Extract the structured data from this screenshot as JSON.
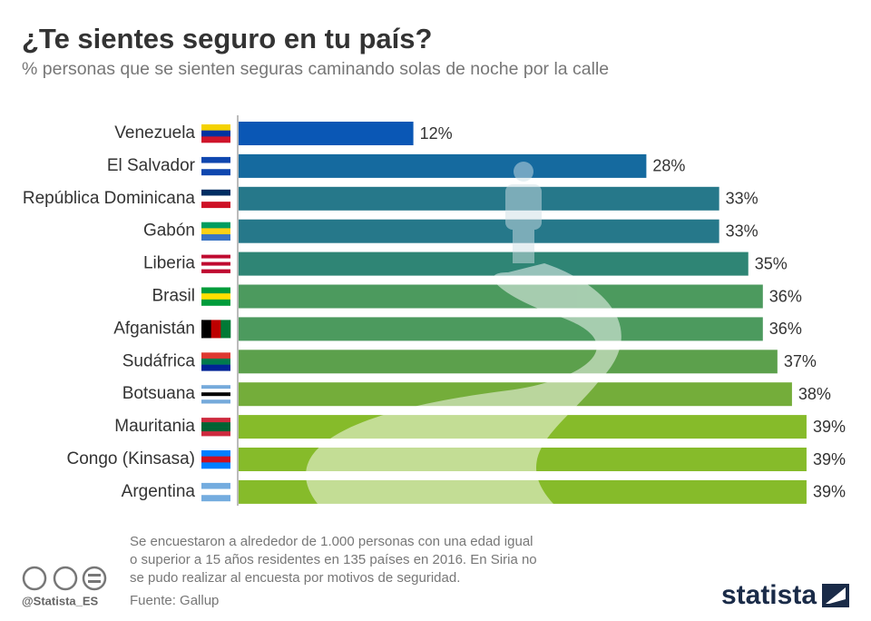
{
  "chart_data": {
    "type": "bar",
    "orientation": "horizontal",
    "title": "¿Te sientes seguro en tu país?",
    "subtitle": "% personas que se sienten seguras caminando solas de noche por la calle",
    "categories": [
      "Venezuela",
      "El Salvador",
      "República Dominicana",
      "Gabón",
      "Liberia",
      "Brasil",
      "Afganistán",
      "Sudáfrica",
      "Botsuana",
      "Mauritania",
      "Congo (Kinsasa)",
      "Argentina"
    ],
    "values": [
      12,
      28,
      33,
      33,
      35,
      36,
      36,
      37,
      38,
      39,
      39,
      39
    ],
    "value_labels": [
      "12%",
      "28%",
      "33%",
      "33%",
      "35%",
      "36%",
      "36%",
      "37%",
      "38%",
      "39%",
      "39%",
      "39%"
    ],
    "colors": [
      "#0a57b5",
      "#156a9f",
      "#26788a",
      "#26788a",
      "#2f8575",
      "#4c9a5e",
      "#4c9a5e",
      "#5ca04c",
      "#74ad3a",
      "#86bb2a",
      "#86bb2a",
      "#86bb2a"
    ]
  },
  "footer": {
    "note": [
      "Se encuestaron a alrededor de 1.000 personas con una edad igual",
      "o superior a 15 años residentes en 135 países en 2016. En Siria no",
      "se pudo realizar al encuesta por motivos de seguridad."
    ],
    "source": "Fuente: Gallup",
    "handle": "@Statista_ES",
    "brand": "statista"
  }
}
